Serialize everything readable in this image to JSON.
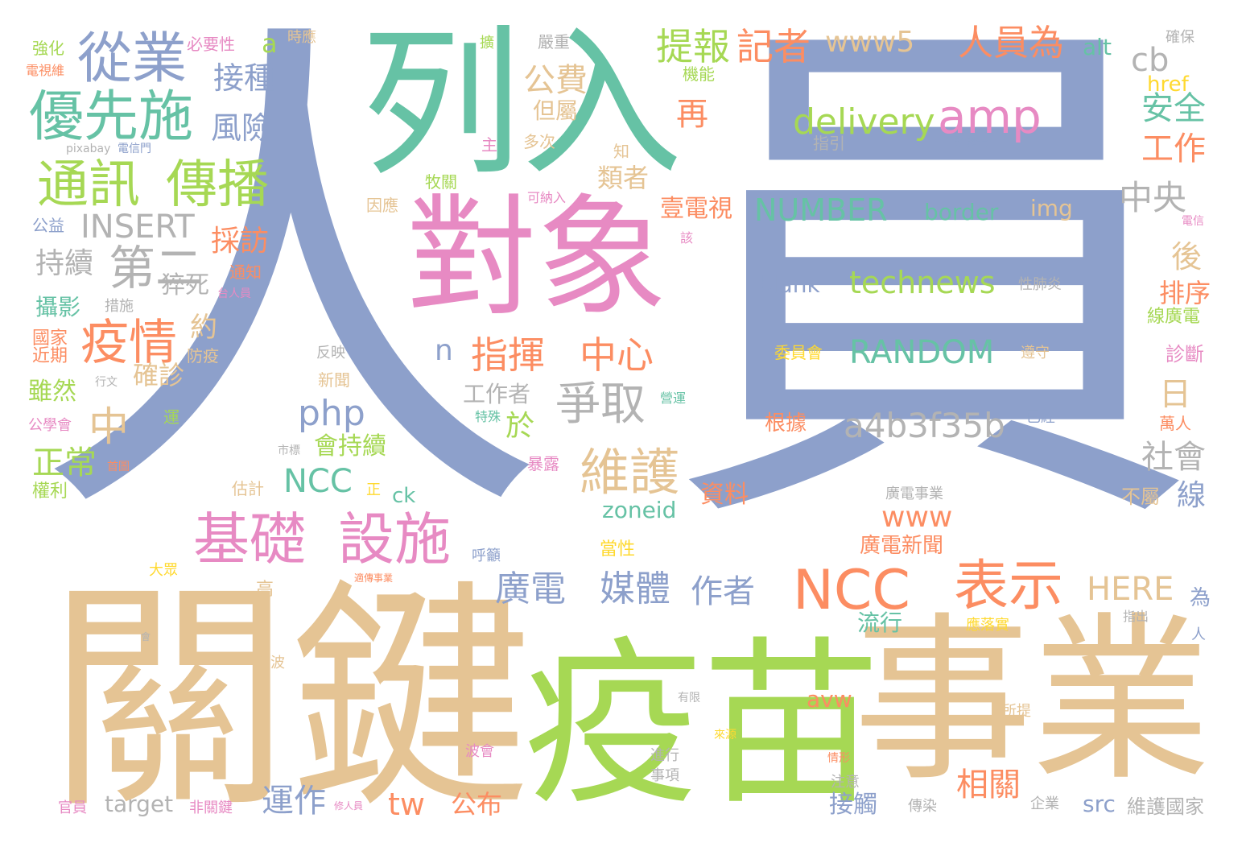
{
  "palette": {
    "blue": "#8da0cb",
    "teal": "#66c2a5",
    "pink": "#e78ac3",
    "green": "#a6d854",
    "tan": "#e5c494",
    "orange": "#fc8d62",
    "gray": "#b3b3b3",
    "yellow": "#ffd92f",
    "background": "#ffffff"
  },
  "words": {
    "w_ren": "人",
    "w_yuan": "員",
    "w_lieru": "列入",
    "w_duixiang": "對象",
    "w_guanjian": "關鍵",
    "w_yimiao": "疫苗",
    "w_shiye": "事業",
    "w_congye": "從業",
    "w_youxianshi": "優先施",
    "w_tongxun": "通訊",
    "w_chuanbo": "傳播",
    "w_tibao": "提報",
    "w_jizhe": "記者",
    "w_www5": "www5",
    "w_renyuanwei": "人員為",
    "w_delivery": "delivery",
    "w_amp": "amp",
    "w_gongfei": "公費",
    "w_jiezhong": "接種",
    "w_fengxian": "風險",
    "w_danshu": "但屬",
    "w_zai": "再",
    "w_anquan": "安全",
    "w_gongzuo": "工作",
    "w_cb": "cb",
    "w_href": "href",
    "w_alt": "alt",
    "w_insert": "INSERT",
    "w_number": "NUMBER",
    "w_border": "border",
    "w_img": "img",
    "w_zhongyang": "中央",
    "w_dier": "第二",
    "w_chixu": "持續",
    "w_caifang": "採訪",
    "w_cusi": "猝死",
    "w_yiqing": "疫情",
    "w_yue": "約",
    "w_zhong": "中",
    "w_zhihui": "指揮",
    "w_zhongxin": "中心",
    "w_n": "n",
    "w_zhengqu": "爭取",
    "w_php": "php",
    "w_yu": "於",
    "w_weihu": "維護",
    "w_blank": "blank",
    "w_technews": "technews",
    "w_random": "RANDOM",
    "w_a4b": "a4b3f35b",
    "w_ri": "日",
    "w_shehui": "社會",
    "w_hou": "後",
    "w_paixu": "排序",
    "w_jichu": "基礎",
    "w_sheshi": "設施",
    "w_ncc_big": "NCC",
    "w_biaoshi": "表示",
    "w_ncc_small": "NCC",
    "w_www": "www",
    "w_guangdian": "廣電",
    "w_meiti": "媒體",
    "w_zuozhe": "作者",
    "w_zoneid": "zoneid",
    "w_here": "HERE",
    "w_zhengchang": "正常",
    "w_queen": "確診",
    "w_yunzuo": "運作",
    "w_tw": "tw",
    "w_gongbu": "公布",
    "w_xiangguan": "相關",
    "w_target": "target",
    "w_src": "src",
    "w_jiechu": "接觸",
    "w_avw": "avw",
    "w_liuxing": "流行",
    "w_xian": "線",
    "w_ziliao": "資料",
    "w_huichixu": "會持續",
    "w_gongzuozhe": "工作者",
    "w_tedian": "壹電視",
    "w_leizhe": "類者",
    "w_sheying": "攝影",
    "w_suiran": "雖然",
    "w_guangdianxinwen": "廣電新聞",
    "w_guanggong": "廣電事業",
    "w_weihuguojia": "維護國家",
    "w_jinqi": "近期",
    "w_qiangh": "強化",
    "w_biyaoxing": "必要性",
    "w_shiying": "時應",
    "w_yanzhong": "嚴重",
    "w_queb": "確保",
    "w_dianshi": "電視維",
    "w_jineng": "機能",
    "w_pixabay": "pixabay",
    "w_dianxinmen": "電信門",
    "w_duoci": "多次",
    "w_zhu": "主",
    "w_zhi": "知",
    "w_zhiyin": "指引",
    "w_yesi": "野思云",
    "w_muguan": "牧關",
    "w_yinying": "因應",
    "w_kena": "可納入",
    "w_gongyi": "公益",
    "w_gai": "該",
    "w_dianxin": "電信",
    "w_tongzhi": "通知",
    "w_cuoshi": "措施",
    "w_tairen": "台人員",
    "w_feiyan": "性肺炎",
    "w_xianguangdian": "線廣電",
    "w_guojia": "國家",
    "w_fangyi": "防疫",
    "w_fanying": "反映",
    "w_weiyuanhui": "委員會",
    "w_zunshou": "遵守",
    "w_zhenduan": "診斷",
    "w_xinwen": "新聞",
    "w_xingwen": "行文",
    "w_yingyun": "營運",
    "w_gongxuehui": "公學會",
    "w_yun": "運",
    "w_teshu": "特殊",
    "w_genju": "根據",
    "w_yijing": "已經",
    "w_wanren": "萬人",
    "w_shibiao": "市標",
    "w_shouye": "首圖",
    "w_baolu": "暴露",
    "w_quanli": "權利",
    "w_guji": "估計",
    "w_zheng": "正",
    "w_ck": "ck",
    "w_bushu": "不屬",
    "w_dazhong": "大眾",
    "w_huyu": "呼籲",
    "w_dangxing": "當性",
    "w_shichuan": "適傳事業",
    "w_gao": "高",
    "w_wei": "為",
    "w_zhichu": "指出",
    "w_ren_small": "人",
    "w_yingluoshi": "應落實",
    "w_hui": "會",
    "w_shoubo": "首波",
    "w_youxian": "有限",
    "w_suoti": "所提",
    "w_laiyuan": "來源",
    "w_jinxing": "進行",
    "w_shixiang": "事項",
    "w_bohui": "波會",
    "w_qingxing": "情形",
    "w_zhuyi": "注意",
    "w_qiye": "企業",
    "w_chuanran": "傳染",
    "w_guanyuan": "官員",
    "w_feiguanjian": "非關鍵",
    "w_xiurenyuan": "修人員",
    "w_a": "a",
    "w_zhi2": "擴"
  }
}
